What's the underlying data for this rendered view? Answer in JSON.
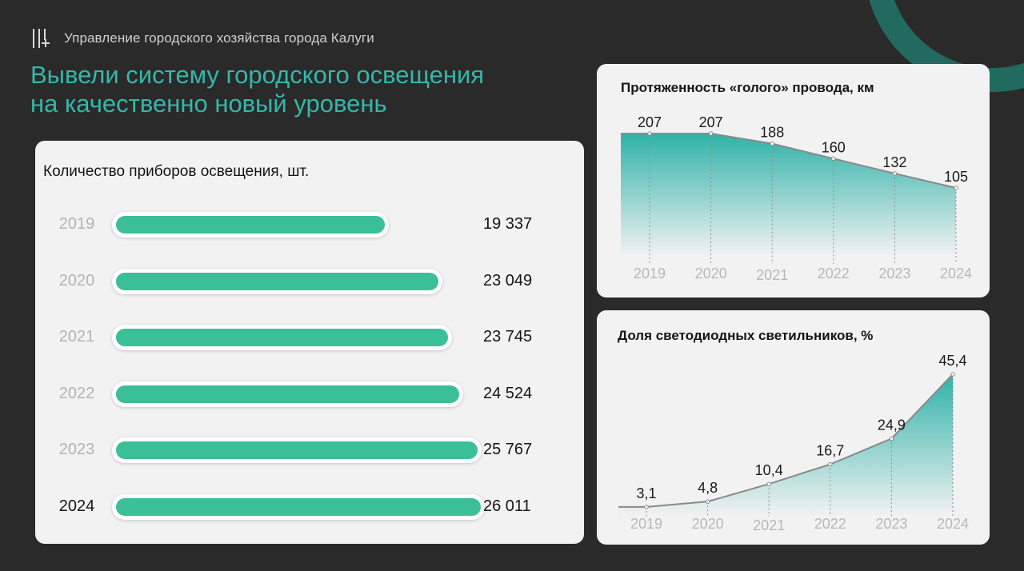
{
  "header": {
    "org_name": "Управление городского хозяйства города Калуги"
  },
  "slide": {
    "title_line1": "Вывели систему городского освещения",
    "title_line2": "на качественно новый уровень"
  },
  "colors": {
    "background": "#2a2a2a",
    "accent_title": "#35b7a8",
    "bar_fill": "#3bbf97",
    "area_fill": "#2fb2a8",
    "card": "#f2f2f2"
  },
  "chart_data": [
    {
      "type": "bar",
      "orientation": "horizontal",
      "title": "Количество приборов освещения, шт.",
      "categories": [
        "2019",
        "2020",
        "2021",
        "2022",
        "2023",
        "2024"
      ],
      "values": [
        19337,
        23049,
        23745,
        24524,
        25767,
        26011
      ],
      "value_labels": [
        "19 337",
        "23 049",
        "23 745",
        "24 524",
        "25 767",
        "26 011"
      ],
      "highlight": "2024",
      "xlim": [
        0,
        26011
      ]
    },
    {
      "type": "area",
      "title": "Протяженность «голого» провода, км",
      "categories": [
        "2019",
        "2020",
        "2021",
        "2022",
        "2023",
        "2024"
      ],
      "values": [
        207,
        207,
        188,
        160,
        132,
        105
      ],
      "value_labels": [
        "207",
        "207",
        "188",
        "160",
        "132",
        "105"
      ],
      "ylim": [
        0,
        207
      ]
    },
    {
      "type": "area",
      "title": "Доля светодиодных светильников, %",
      "categories": [
        "2019",
        "2020",
        "2021",
        "2022",
        "2023",
        "2024"
      ],
      "values": [
        3.1,
        4.8,
        10.4,
        16.7,
        24.9,
        45.4
      ],
      "value_labels": [
        "3,1",
        "4,8",
        "10,4",
        "16,7",
        "24,9",
        "45,4"
      ],
      "ylim": [
        0,
        45.4
      ]
    }
  ]
}
